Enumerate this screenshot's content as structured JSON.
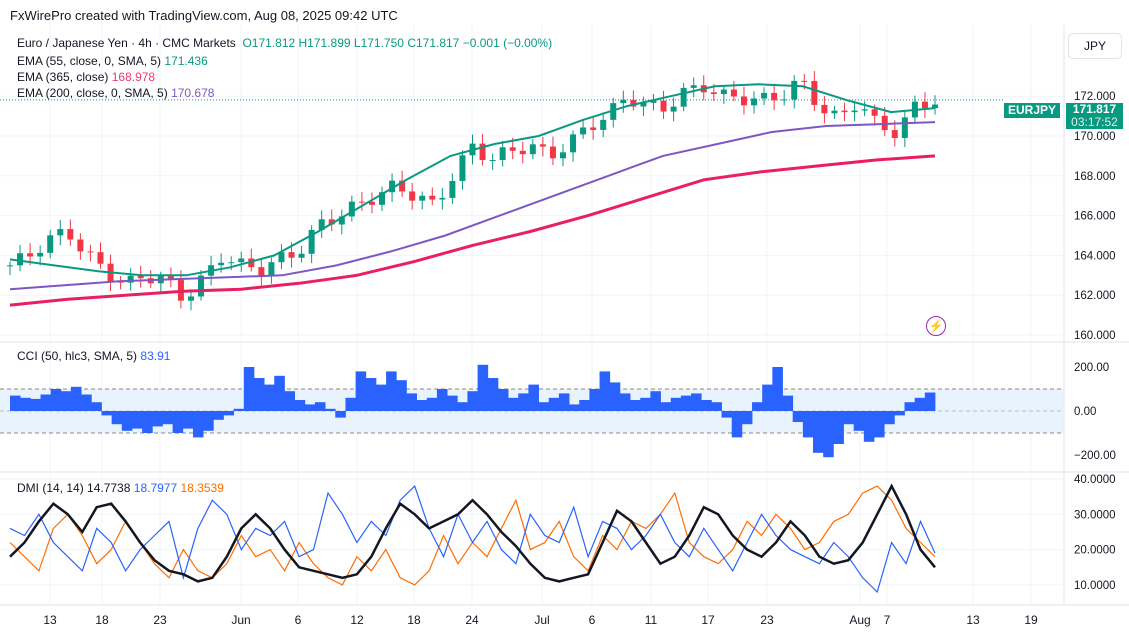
{
  "header": {
    "credit": "FxWirePro created with TradingView.com, Aug 08, 2025 09:42 UTC"
  },
  "legend": {
    "symbol": "Euro / Japanese Yen · 4h · CMC Markets",
    "o": "O171.812",
    "h": "H171.899",
    "l": "L171.750",
    "c": "C171.817",
    "change": "−0.001 (−0.00%)",
    "ema55_label": "EMA (55, close, 0, SMA, 5)",
    "ema55_value": "171.436",
    "ema365_label": "EMA (365, close)",
    "ema365_value": "168.978",
    "ema200_label": "EMA (200, close, 0, SMA, 5)",
    "ema200_value": "170.678"
  },
  "currency_button": "JPY",
  "price_tag": {
    "symbol": "EURJPY",
    "price": "171.817",
    "countdown": "03:17:52"
  },
  "colors": {
    "up": "#089981",
    "down": "#f23645",
    "ema55": "#089981",
    "ema365": "#e91e63",
    "ema200": "#7e57c2",
    "cci": "#2962ff",
    "adx": "#131722",
    "plus_di": "#2962ff",
    "minus_di": "#ff6d00"
  },
  "chart_data": [
    {
      "type": "candlestick",
      "title": "EURJPY 4h",
      "ylim": [
        160,
        173.5
      ],
      "yticks": [
        "172.000",
        "170.000",
        "168.000",
        "166.000",
        "164.000",
        "162.000",
        "160.000"
      ],
      "ytick_values": [
        172,
        170,
        168,
        166,
        164,
        162,
        160
      ],
      "close_keypoints": [
        163.5,
        164,
        164.8,
        165.2,
        164,
        163.2,
        162.5,
        163,
        162.8,
        161.8,
        162.8,
        164,
        163.5,
        163.3,
        163.8,
        164.2,
        165.5,
        166,
        166.5,
        167,
        167.5,
        167,
        166.5,
        168,
        169.5,
        168.8,
        169.3,
        169.5,
        169,
        169.6,
        170.5,
        171,
        172,
        171.5,
        171.4,
        172.2,
        172.5,
        172,
        171.9,
        171.8,
        172,
        172.8,
        171.5,
        170.8,
        171.8,
        170.5,
        170.2,
        171.5,
        171.8
      ],
      "ema55": [
        163.8,
        163.5,
        163.2,
        163.0,
        163.0,
        163.4,
        164.0,
        165.2,
        166.5,
        167.8,
        169.0,
        169.6,
        170.0,
        170.8,
        171.5,
        172.0,
        172.5,
        172.6,
        172.5,
        171.8,
        171.2,
        171.4
      ],
      "ema200": [
        162.3,
        162.5,
        162.7,
        162.8,
        162.9,
        163.0,
        163.5,
        164.2,
        165.0,
        166.0,
        167.0,
        168.0,
        169.0,
        169.6,
        170.2,
        170.5,
        170.6,
        170.7
      ],
      "ema365": [
        161.5,
        161.8,
        162.0,
        162.2,
        162.3,
        162.6,
        163.0,
        163.7,
        164.5,
        165.2,
        166.0,
        166.9,
        167.8,
        168.2,
        168.5,
        168.8,
        169.0
      ]
    },
    {
      "type": "bar",
      "title": "CCI (50, hlc3, SMA, 5)",
      "value": "83.91",
      "ylim": [
        -230,
        270
      ],
      "yticks": [
        "200.00",
        "0.00",
        "−200.00"
      ],
      "ytick_values": [
        200,
        0,
        -200
      ],
      "bands": [
        100,
        -100
      ],
      "values": [
        70,
        60,
        55,
        75,
        100,
        90,
        110,
        75,
        40,
        -20,
        -60,
        -90,
        -80,
        -100,
        -70,
        -60,
        -100,
        -80,
        -120,
        -90,
        -40,
        -20,
        10,
        200,
        150,
        120,
        160,
        90,
        50,
        30,
        40,
        10,
        -30,
        60,
        180,
        150,
        120,
        180,
        140,
        80,
        50,
        60,
        100,
        70,
        40,
        90,
        210,
        150,
        100,
        60,
        80,
        120,
        40,
        60,
        80,
        30,
        50,
        100,
        180,
        130,
        80,
        50,
        60,
        90,
        40,
        60,
        70,
        80,
        50,
        40,
        -30,
        -120,
        -60,
        40,
        120,
        200,
        70,
        -50,
        -120,
        -190,
        -210,
        -150,
        -60,
        -90,
        -140,
        -120,
        -60,
        -20,
        40,
        60,
        84
      ],
      "xticks": [
        "13",
        "18",
        "23",
        "Jun",
        "6",
        "12",
        "18",
        "24",
        "Jul",
        "6",
        "11",
        "17",
        "23",
        "Aug",
        "7",
        "13",
        "19"
      ]
    },
    {
      "type": "line",
      "title": "DMI (14, 14)",
      "ylim": [
        5,
        40
      ],
      "yticks": [
        "40.0000",
        "30.0000",
        "20.0000",
        "10.0000"
      ],
      "ytick_values": [
        40,
        30,
        20,
        10
      ],
      "series": [
        {
          "name": "ADX",
          "value": "14.7738",
          "values": [
            18,
            22,
            28,
            33,
            30,
            25,
            32,
            33,
            28,
            22,
            17,
            14,
            13,
            11,
            12,
            18,
            26,
            30,
            26,
            20,
            15,
            14,
            13,
            12,
            13,
            18,
            26,
            33,
            30,
            26,
            28,
            30,
            34,
            30,
            25,
            21,
            16,
            12,
            11,
            12,
            13,
            22,
            31,
            28,
            22,
            16,
            18,
            24,
            32,
            30,
            24,
            20,
            18,
            22,
            28,
            24,
            18,
            16,
            17,
            22,
            30,
            38,
            30,
            20,
            15
          ]
        },
        {
          "name": "+DI",
          "value": "18.7977",
          "values": [
            26,
            24,
            30,
            22,
            18,
            14,
            26,
            22,
            14,
            20,
            24,
            28,
            12,
            26,
            34,
            30,
            20,
            26,
            24,
            28,
            18,
            20,
            36,
            30,
            22,
            28,
            24,
            34,
            38,
            26,
            18,
            30,
            22,
            28,
            20,
            16,
            30,
            24,
            22,
            32,
            18,
            28,
            26,
            20,
            24,
            30,
            22,
            18,
            26,
            20,
            14,
            22,
            30,
            24,
            20,
            18,
            16,
            22,
            18,
            12,
            8,
            22,
            16,
            28,
            19
          ]
        },
        {
          "name": "−DI",
          "value": "18.3539",
          "values": [
            22,
            18,
            14,
            26,
            30,
            24,
            16,
            20,
            28,
            22,
            16,
            12,
            20,
            14,
            12,
            16,
            24,
            18,
            20,
            14,
            22,
            16,
            12,
            10,
            18,
            14,
            20,
            12,
            10,
            14,
            24,
            16,
            22,
            18,
            26,
            34,
            20,
            22,
            28,
            18,
            14,
            24,
            20,
            28,
            26,
            30,
            36,
            22,
            18,
            16,
            20,
            28,
            24,
            30,
            26,
            20,
            22,
            28,
            30,
            36,
            38,
            34,
            26,
            22,
            18
          ]
        }
      ]
    }
  ]
}
